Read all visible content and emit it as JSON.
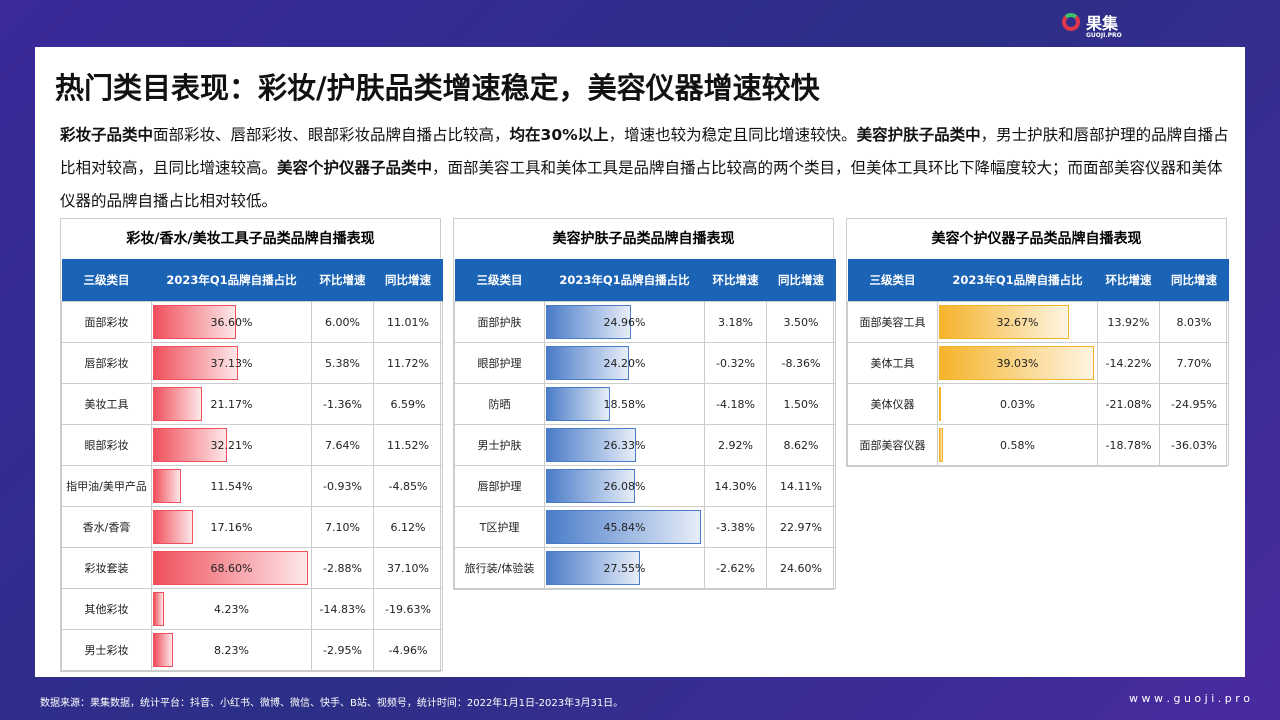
{
  "logo": {
    "name": "果集",
    "sub": "GUOJI.PRO"
  },
  "title": "热门类目表现：彩妆/护肤品类增速稳定，美容仪器增速较快",
  "intro": [
    {
      "text": "彩妆子品类中",
      "bold": true
    },
    {
      "text": "面部彩妆、唇部彩妆、眼部彩妆品牌自播占比较高，",
      "bold": false
    },
    {
      "text": "均在30%以上",
      "bold": true
    },
    {
      "text": "，增速也较为稳定且同比增速较快。",
      "bold": false
    },
    {
      "text": "美容护肤子品类中",
      "bold": true
    },
    {
      "text": "，男士护肤和唇部护理的品牌自播占比相对较高，且同比增速较高。",
      "bold": false
    },
    {
      "text": "美容个护仪器子品类中",
      "bold": true
    },
    {
      "text": "，面部美容工具和美体工具是品牌自播占比较高的两个类目，但美体工具环比下降幅度较大；而面部美容仪器和美体仪器的品牌自播占比相对较低。",
      "bold": false
    }
  ],
  "tables": [
    {
      "title": "彩妆/香水/美妆工具子品类品牌自播表现",
      "bar_color": "#f0505c",
      "columns": [
        "三级类目",
        "2023年Q1品牌自播占比",
        "环比增速",
        "同比增速"
      ],
      "rows": [
        [
          "面部彩妆",
          "36.60%",
          "6.00%",
          "11.01%"
        ],
        [
          "唇部彩妆",
          "37.13%",
          "5.38%",
          "11.72%"
        ],
        [
          "美妆工具",
          "21.17%",
          "-1.36%",
          "6.59%"
        ],
        [
          "眼部彩妆",
          "32.21%",
          "7.64%",
          "11.52%"
        ],
        [
          "指甲油/美甲产品",
          "11.54%",
          "-0.93%",
          "-4.85%"
        ],
        [
          "香水/香膏",
          "17.16%",
          "7.10%",
          "6.12%"
        ],
        [
          "彩妆套装",
          "68.60%",
          "-2.88%",
          "37.10%"
        ],
        [
          "其他彩妆",
          "4.23%",
          "-14.83%",
          "-19.63%"
        ],
        [
          "男士彩妆",
          "8.23%",
          "-2.95%",
          "-4.96%"
        ]
      ]
    },
    {
      "title": "美容护肤子品类品牌自播表现",
      "bar_color": "#4a7cc9",
      "columns": [
        "三级类目",
        "2023年Q1品牌自播占比",
        "环比增速",
        "同比增速"
      ],
      "rows": [
        [
          "面部护肤",
          "24.96%",
          "3.18%",
          "3.50%"
        ],
        [
          "眼部护理",
          "24.20%",
          "-0.32%",
          "-8.36%"
        ],
        [
          "防晒",
          "18.58%",
          "-4.18%",
          "1.50%"
        ],
        [
          "男士护肤",
          "26.33%",
          "2.92%",
          "8.62%"
        ],
        [
          "唇部护理",
          "26.08%",
          "14.30%",
          "14.11%"
        ],
        [
          "T区护理",
          "45.84%",
          "-3.38%",
          "22.97%"
        ],
        [
          "旅行装/体验装",
          "27.55%",
          "-2.62%",
          "24.60%"
        ]
      ]
    },
    {
      "title": "美容个护仪器子品类品牌自播表现",
      "bar_color": "#f5b32a",
      "columns": [
        "三级类目",
        "2023年Q1品牌自播占比",
        "环比增速",
        "同比增速"
      ],
      "rows": [
        [
          "面部美容工具",
          "32.67%",
          "13.92%",
          "8.03%"
        ],
        [
          "美体工具",
          "39.03%",
          "-14.22%",
          "7.70%"
        ],
        [
          "美体仪器",
          "0.03%",
          "-21.08%",
          "-24.95%"
        ],
        [
          "面部美容仪器",
          "0.58%",
          "-18.78%",
          "-36.03%"
        ]
      ]
    }
  ],
  "footer": {
    "source": "数据来源：果集数据，统计平台：抖音、小红书、微博、微信、快手、B站、视频号，统计时间：2022年1月1日-2023年3月31日。",
    "site": "w w w . g u o j i . p r o"
  }
}
